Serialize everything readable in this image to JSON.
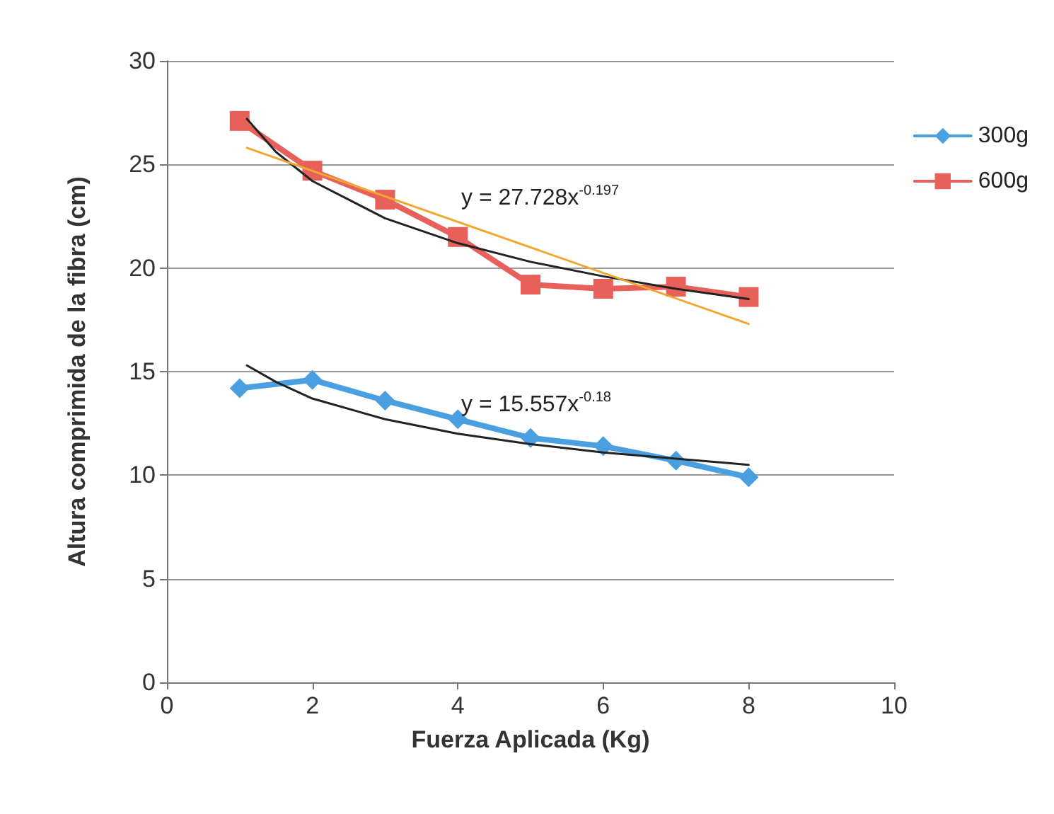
{
  "chart_data": {
    "type": "line",
    "xlabel": "Fuerza Aplicada (Kg)",
    "ylabel": "Altura comprimida de la fibra (cm)",
    "xlim": [
      0,
      10
    ],
    "xticks": [
      0,
      2,
      4,
      6,
      8,
      10
    ],
    "ylim": [
      0,
      30
    ],
    "yticks": [
      0,
      5,
      10,
      15,
      20,
      25,
      30
    ],
    "grid": "y",
    "legend": "right",
    "line_style": "solid",
    "series": [
      {
        "name": "300g",
        "color": "#4a9fe0",
        "marker": "diamond",
        "x": [
          1,
          2,
          3,
          4,
          5,
          6,
          7,
          8
        ],
        "values": [
          14.2,
          14.6,
          13.6,
          12.7,
          11.8,
          11.4,
          10.7,
          9.9
        ]
      },
      {
        "name": "600g",
        "color": "#e8605a",
        "marker": "square",
        "x": [
          1,
          2,
          3,
          4,
          5,
          6,
          7,
          8
        ],
        "values": [
          27.1,
          24.7,
          23.3,
          21.5,
          19.2,
          19.0,
          19.1,
          18.6
        ]
      },
      {
        "color": "#222222",
        "marker": "none",
        "x": [
          1.1,
          1.5,
          2,
          3,
          4,
          5,
          6,
          7,
          8
        ],
        "values": [
          27.2,
          25.6,
          24.2,
          22.4,
          21.2,
          20.3,
          19.6,
          19.0,
          18.5
        ]
      },
      {
        "color": "#f0a830",
        "marker": "none",
        "x": [
          1.1,
          8
        ],
        "values": [
          25.8,
          17.3
        ]
      },
      {
        "color": "#222222",
        "marker": "none",
        "x": [
          1.1,
          1.5,
          2,
          3,
          4,
          5,
          6,
          7,
          8
        ],
        "values": [
          15.3,
          14.5,
          13.7,
          12.7,
          12.0,
          11.5,
          11.1,
          10.8,
          10.5
        ]
      }
    ],
    "annotations": [
      "y = 27.728x$^{-0.197}$",
      "y = 15.557x$^{-0.18}$"
    ]
  }
}
